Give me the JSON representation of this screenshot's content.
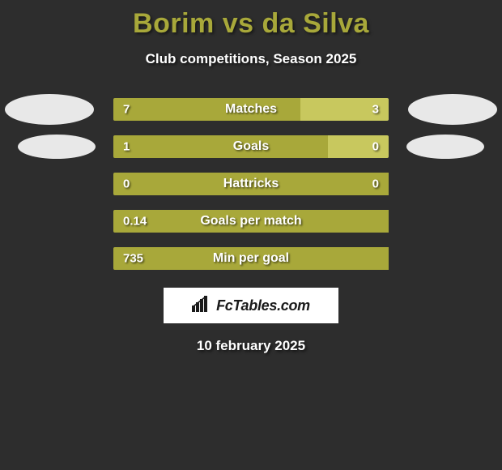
{
  "background_color": "#2d2d2d",
  "title": {
    "text": "Borim vs da Silva",
    "color": "#a8a83a",
    "fontsize": 34
  },
  "subtitle": {
    "text": "Club competitions, Season 2025",
    "color": "#ffffff",
    "fontsize": 17
  },
  "bar_colors": {
    "left": "#a8a83a",
    "right_light": "#c8c85e",
    "track": "#3a3a3a"
  },
  "avatar_color": "#e8e8e8",
  "rows": [
    {
      "label": "Matches",
      "left_value": "7",
      "right_value": "3",
      "left_pct": 68,
      "right_pct": 32,
      "show_avatars": true,
      "avatar_variant": 1
    },
    {
      "label": "Goals",
      "left_value": "1",
      "right_value": "0",
      "left_pct": 78,
      "right_pct": 22,
      "show_avatars": true,
      "avatar_variant": 2
    },
    {
      "label": "Hattricks",
      "left_value": "0",
      "right_value": "0",
      "left_pct": 100,
      "right_pct": 0,
      "show_avatars": false
    },
    {
      "label": "Goals per match",
      "left_value": "0.14",
      "right_value": "",
      "left_pct": 100,
      "right_pct": 0,
      "show_avatars": false
    },
    {
      "label": "Min per goal",
      "left_value": "735",
      "right_value": "",
      "left_pct": 100,
      "right_pct": 0,
      "show_avatars": false
    }
  ],
  "brand": {
    "text": "FcTables.com",
    "box_bg": "#ffffff",
    "text_color": "#1a1a1a"
  },
  "date": {
    "text": "10 february 2025",
    "color": "#ffffff",
    "fontsize": 17
  }
}
